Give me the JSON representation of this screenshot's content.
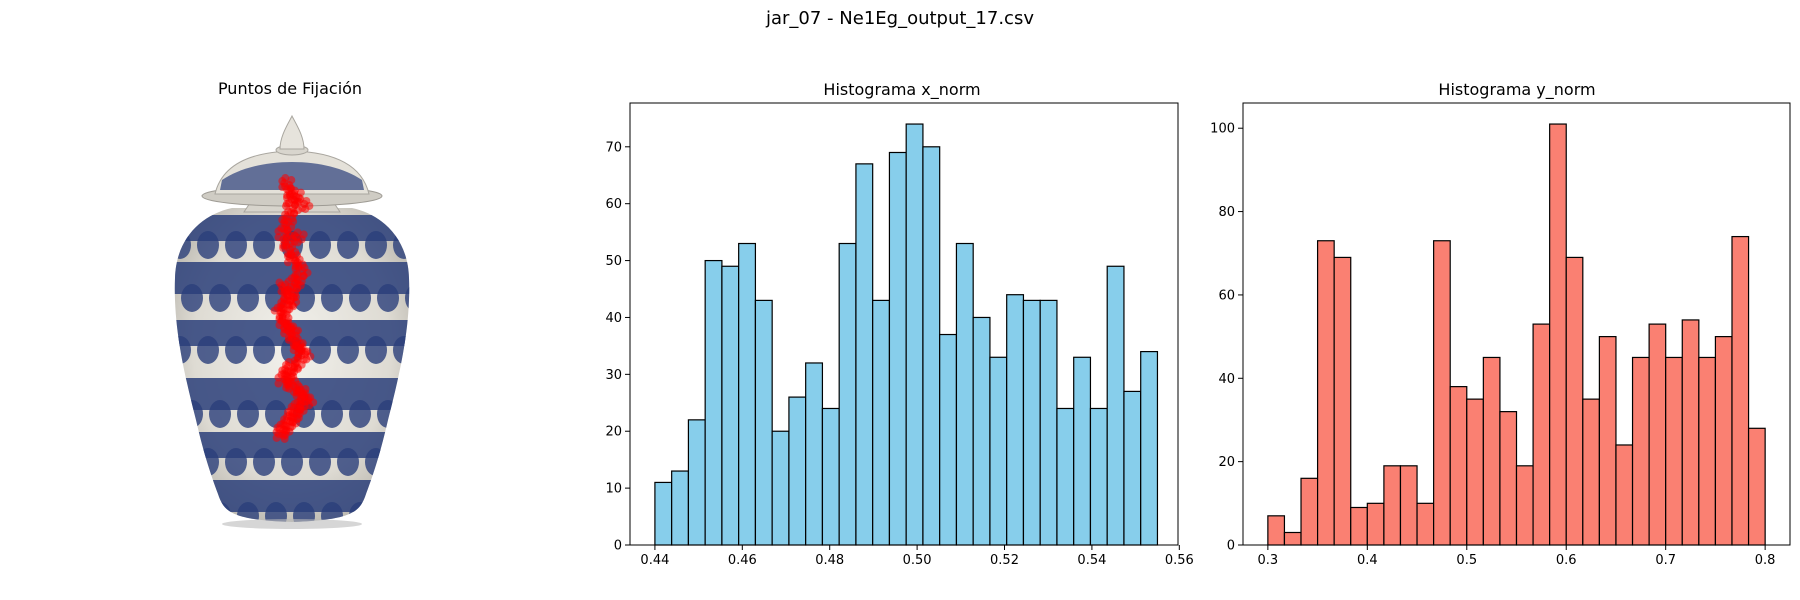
{
  "suptitle": "jar_07 - Ne1Eg_output_17.csv",
  "colors": {
    "x_hist_fill": "#87ceeb",
    "y_hist_fill": "#fa8072",
    "bar_edge": "#000000",
    "fixation_point": "#ff0000",
    "jar_light": "#e9e6df",
    "jar_blue": "#2b3f7a"
  },
  "chart_data": [
    {
      "type": "scatter",
      "title": "Puntos de Fijación",
      "note_image": "porcelain jar with blue and white drip glaze",
      "points_color": "#ff0000",
      "x": [
        0.48,
        0.49,
        0.5,
        0.51,
        0.5,
        0.49,
        0.48,
        0.47,
        0.48,
        0.49,
        0.5,
        0.52,
        0.53,
        0.52,
        0.51,
        0.5,
        0.49,
        0.48,
        0.47,
        0.46,
        0.47,
        0.48,
        0.49,
        0.5,
        0.51,
        0.52,
        0.53,
        0.54,
        0.52,
        0.5,
        0.49,
        0.48,
        0.47,
        0.49,
        0.51,
        0.53,
        0.54,
        0.55,
        0.53,
        0.52,
        0.51,
        0.5,
        0.49,
        0.48,
        0.47,
        0.46,
        0.47,
        0.49,
        0.52,
        0.54
      ],
      "y": [
        0.17,
        0.19,
        0.21,
        0.2,
        0.23,
        0.25,
        0.27,
        0.29,
        0.31,
        0.33,
        0.35,
        0.36,
        0.38,
        0.4,
        0.41,
        0.43,
        0.44,
        0.46,
        0.47,
        0.48,
        0.5,
        0.51,
        0.52,
        0.53,
        0.55,
        0.56,
        0.57,
        0.58,
        0.6,
        0.61,
        0.62,
        0.63,
        0.64,
        0.65,
        0.66,
        0.67,
        0.68,
        0.69,
        0.7,
        0.71,
        0.72,
        0.73,
        0.74,
        0.75,
        0.76,
        0.77,
        0.42,
        0.45,
        0.3,
        0.22
      ]
    },
    {
      "type": "bar",
      "title": "Histograma x_norm",
      "bin_start": 0.44,
      "bin_width": 0.0038333,
      "values": [
        11,
        13,
        22,
        50,
        49,
        53,
        43,
        20,
        26,
        32,
        24,
        53,
        67,
        43,
        69,
        74,
        70,
        37,
        53,
        40,
        33,
        44,
        43,
        43,
        24,
        33,
        24,
        49,
        27,
        34
      ],
      "xlim": [
        0.4343,
        0.5597
      ],
      "ylim": [
        0,
        77.7
      ],
      "xticks": [
        "0.44",
        "0.46",
        "0.48",
        "0.50",
        "0.52",
        "0.54",
        "0.56"
      ],
      "xtick_values": [
        0.44,
        0.46,
        0.48,
        0.5,
        0.52,
        0.54,
        0.56
      ],
      "yticks": [
        "0",
        "10",
        "20",
        "30",
        "40",
        "50",
        "60",
        "70"
      ],
      "ytick_values": [
        0,
        10,
        20,
        30,
        40,
        50,
        60,
        70
      ],
      "color": "#87ceeb"
    },
    {
      "type": "bar",
      "title": "Histograma y_norm",
      "bin_start": 0.3,
      "bin_width": 0.016667,
      "values": [
        7,
        3,
        16,
        73,
        69,
        9,
        10,
        19,
        19,
        10,
        73,
        38,
        35,
        45,
        32,
        19,
        53,
        101,
        69,
        35,
        50,
        24,
        45,
        53,
        45,
        54,
        45,
        50,
        74,
        28
      ],
      "xlim": [
        0.275,
        0.825
      ],
      "ylim": [
        0,
        106.05
      ],
      "xticks": [
        "0.3",
        "0.4",
        "0.5",
        "0.6",
        "0.7",
        "0.8"
      ],
      "xtick_values": [
        0.3,
        0.4,
        0.5,
        0.6,
        0.7,
        0.8
      ],
      "yticks": [
        "0",
        "20",
        "40",
        "60",
        "80",
        "100"
      ],
      "ytick_values": [
        0,
        20,
        40,
        60,
        80,
        100
      ],
      "color": "#fa8072"
    }
  ]
}
